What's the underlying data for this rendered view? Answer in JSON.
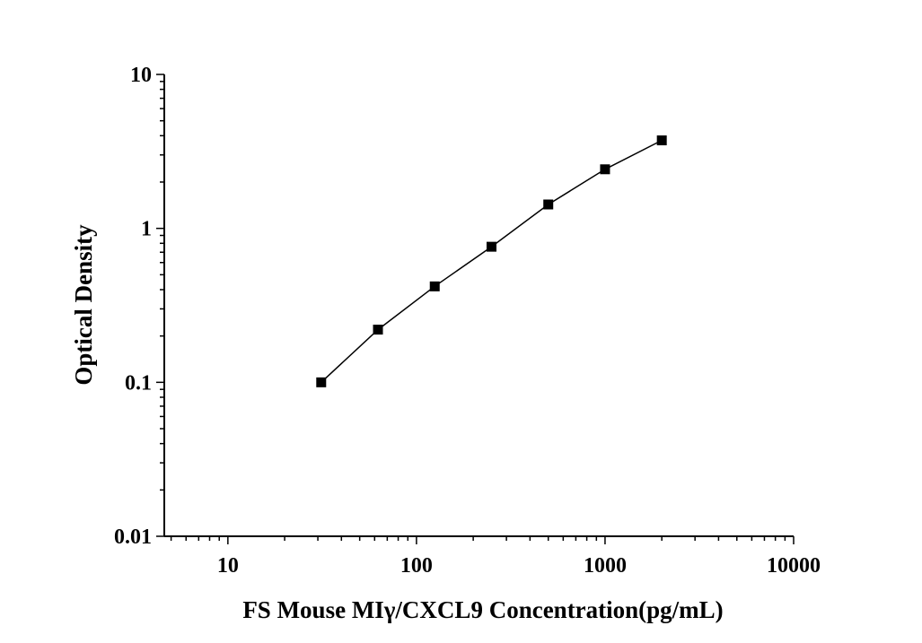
{
  "chart_data": {
    "type": "line",
    "title": "",
    "xlabel": "FS Mouse MIγ/CXCL9 Concentration(pg/mL)",
    "ylabel": "Optical Density",
    "x_scale": "log",
    "y_scale": "log",
    "xlim": [
      4.6,
      10000
    ],
    "ylim": [
      0.01,
      10
    ],
    "x_ticks": [
      10,
      100,
      1000,
      10000
    ],
    "x_tick_labels": [
      "10",
      "100",
      "1000",
      "10000"
    ],
    "y_ticks": [
      0.01,
      0.1,
      1,
      10
    ],
    "y_tick_labels": [
      "0.01",
      "0.1",
      "1",
      "10"
    ],
    "grid": false,
    "legend": "none",
    "series": [
      {
        "x": [
          31.25,
          62.5,
          125,
          250,
          500,
          1000,
          2000
        ],
        "y": [
          0.1,
          0.22,
          0.42,
          0.76,
          1.43,
          2.42,
          3.73
        ],
        "marker": "square",
        "color": "#000000"
      }
    ]
  }
}
